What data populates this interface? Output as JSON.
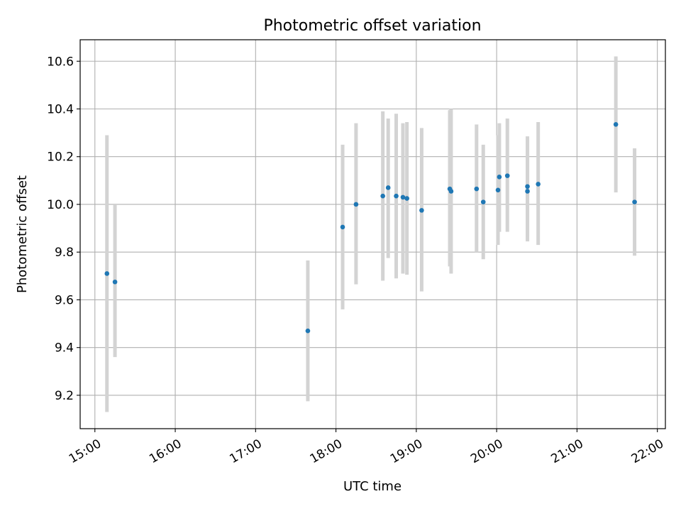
{
  "chart_data": {
    "type": "scatter",
    "title": "Photometric offset variation",
    "xlabel": "UTC time",
    "ylabel": "Photometric offset",
    "xlim": [
      "14:49",
      "22:06"
    ],
    "ylim": [
      9.06,
      10.69
    ],
    "x_ticks": [
      "15:00",
      "16:00",
      "17:00",
      "18:00",
      "19:00",
      "20:00",
      "21:00",
      "22:00"
    ],
    "y_ticks": [
      "9.2",
      "9.4",
      "9.6",
      "9.8",
      "10.0",
      "10.2",
      "10.4",
      "10.6"
    ],
    "grid": true,
    "marker_color": "#1f77b4",
    "errorbar_color": "#d3d3d3",
    "points": [
      {
        "x": "15:09",
        "y": 9.71,
        "y_low": 9.13,
        "y_high": 10.29
      },
      {
        "x": "15:15",
        "y": 9.675,
        "y_low": 9.36,
        "y_high": 10.0
      },
      {
        "x": "17:39",
        "y": 9.47,
        "y_low": 9.175,
        "y_high": 9.765
      },
      {
        "x": "18:05",
        "y": 9.905,
        "y_low": 9.56,
        "y_high": 10.25
      },
      {
        "x": "18:15",
        "y": 10.0,
        "y_low": 9.665,
        "y_high": 10.34
      },
      {
        "x": "18:35",
        "y": 10.035,
        "y_low": 9.68,
        "y_high": 10.39
      },
      {
        "x": "18:39",
        "y": 10.07,
        "y_low": 9.775,
        "y_high": 10.36
      },
      {
        "x": "18:45",
        "y": 10.035,
        "y_low": 9.69,
        "y_high": 10.38
      },
      {
        "x": "18:50",
        "y": 10.03,
        "y_low": 9.71,
        "y_high": 10.34
      },
      {
        "x": "18:53",
        "y": 10.025,
        "y_low": 9.705,
        "y_high": 10.345
      },
      {
        "x": "19:04",
        "y": 9.975,
        "y_low": 9.635,
        "y_high": 10.32
      },
      {
        "x": "19:25",
        "y": 10.065,
        "y_low": 9.74,
        "y_high": 10.395
      },
      {
        "x": "19:26",
        "y": 10.055,
        "y_low": 9.71,
        "y_high": 10.4
      },
      {
        "x": "19:45",
        "y": 10.065,
        "y_low": 9.8,
        "y_high": 10.335
      },
      {
        "x": "19:50",
        "y": 10.01,
        "y_low": 9.77,
        "y_high": 10.25
      },
      {
        "x": "20:01",
        "y": 10.06,
        "y_low": 9.83,
        "y_high": 10.29
      },
      {
        "x": "20:02",
        "y": 10.115,
        "y_low": 9.885,
        "y_high": 10.34
      },
      {
        "x": "20:08",
        "y": 10.12,
        "y_low": 9.885,
        "y_high": 10.36
      },
      {
        "x": "20:23",
        "y": 10.055,
        "y_low": 9.845,
        "y_high": 10.27
      },
      {
        "x": "20:23",
        "y": 10.075,
        "y_low": 9.865,
        "y_high": 10.285
      },
      {
        "x": "20:31",
        "y": 10.085,
        "y_low": 9.83,
        "y_high": 10.345
      },
      {
        "x": "21:29",
        "y": 10.335,
        "y_low": 10.05,
        "y_high": 10.62
      },
      {
        "x": "21:43",
        "y": 10.01,
        "y_low": 9.785,
        "y_high": 10.235
      }
    ]
  }
}
